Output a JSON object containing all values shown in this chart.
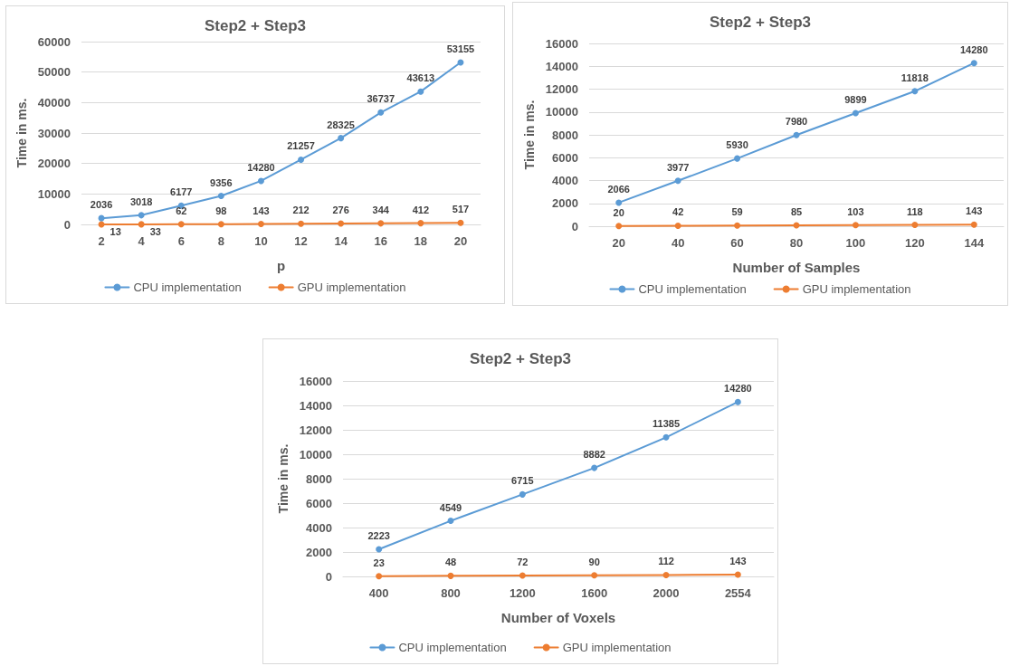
{
  "chart_data": [
    {
      "type": "line",
      "title": "Step2 + Step3",
      "xlabel": "p",
      "ylabel": "Time in ms.",
      "categories": [
        "2",
        "4",
        "6",
        "8",
        "10",
        "12",
        "14",
        "16",
        "18",
        "20"
      ],
      "series": [
        {
          "name": "CPU implementation",
          "color": "#5b9bd5",
          "values": [
            2036,
            3018,
            6177,
            9356,
            14280,
            21257,
            28325,
            36737,
            43613,
            53155
          ]
        },
        {
          "name": "GPU implementation",
          "color": "#ed7d31",
          "values": [
            13,
            33,
            62,
            98,
            143,
            212,
            276,
            344,
            412,
            517
          ]
        }
      ],
      "ylim": [
        0,
        60000
      ],
      "yticks": [
        0,
        10000,
        20000,
        30000,
        40000,
        50000,
        60000
      ],
      "grid": "y",
      "legend": "bottom",
      "data_labels": true,
      "marker": "circle",
      "line_style": "solid"
    },
    {
      "type": "line",
      "title": "Step2 + Step3",
      "xlabel": "Number of Samples",
      "ylabel": "Time in ms.",
      "categories": [
        "20",
        "40",
        "60",
        "80",
        "100",
        "120",
        "144"
      ],
      "series": [
        {
          "name": "CPU implementation",
          "color": "#5b9bd5",
          "values": [
            2066,
            3977,
            5930,
            7980,
            9899,
            11818,
            14280
          ]
        },
        {
          "name": "GPU implementation",
          "color": "#ed7d31",
          "values": [
            20,
            42,
            59,
            85,
            103,
            118,
            143
          ]
        }
      ],
      "ylim": [
        0,
        16000
      ],
      "yticks": [
        0,
        2000,
        4000,
        6000,
        8000,
        10000,
        12000,
        14000,
        16000
      ],
      "grid": "y",
      "legend": "bottom",
      "data_labels": true,
      "marker": "circle",
      "line_style": "solid"
    },
    {
      "type": "line",
      "title": "Step2 + Step3",
      "xlabel": "Number of Voxels",
      "ylabel": "Time in ms.",
      "categories": [
        "400",
        "800",
        "1200",
        "1600",
        "2000",
        "2554"
      ],
      "series": [
        {
          "name": "CPU implementation",
          "color": "#5b9bd5",
          "values": [
            2223,
            4549,
            6715,
            8882,
            11385,
            14280
          ]
        },
        {
          "name": "GPU implementation",
          "color": "#ed7d31",
          "values": [
            23,
            48,
            72,
            90,
            112,
            143
          ]
        }
      ],
      "ylim": [
        0,
        16000
      ],
      "yticks": [
        0,
        2000,
        4000,
        6000,
        8000,
        10000,
        12000,
        14000,
        16000
      ],
      "grid": "y",
      "legend": "bottom",
      "data_labels": true,
      "marker": "circle",
      "line_style": "solid"
    }
  ]
}
